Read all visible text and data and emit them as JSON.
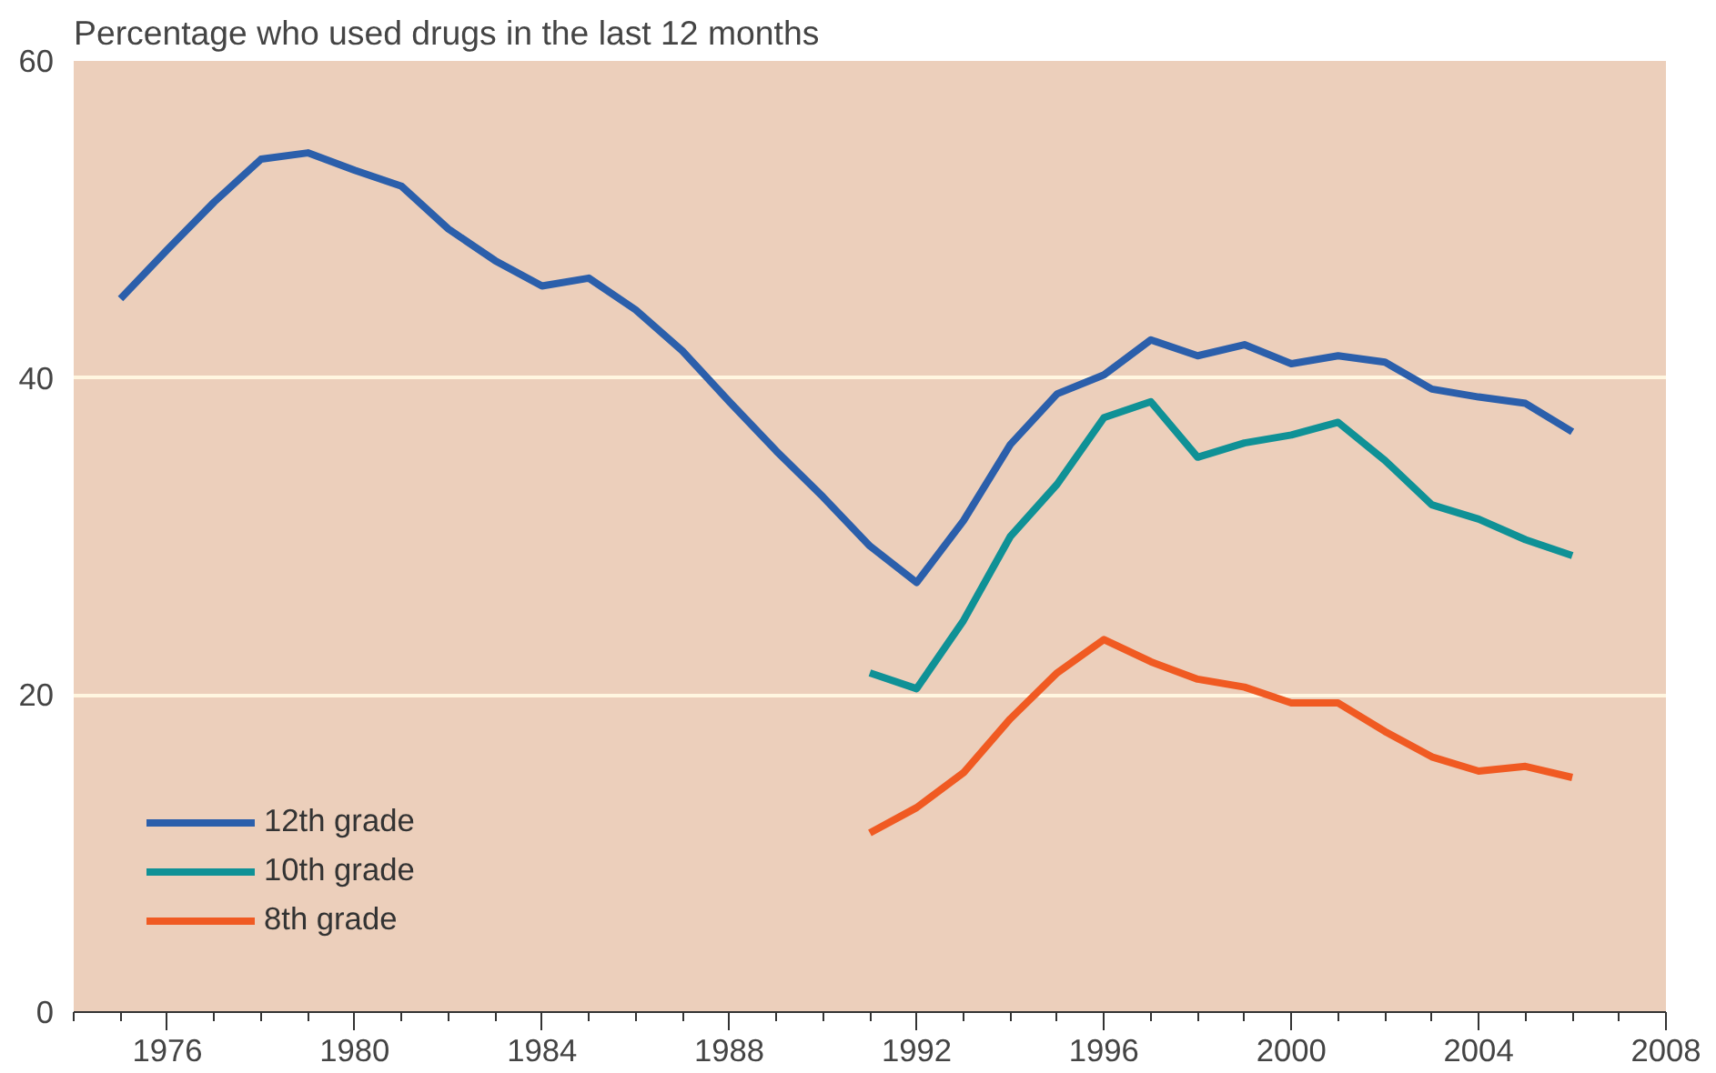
{
  "chart_data": {
    "type": "line",
    "title": "Percentage who used drugs in the last 12 months",
    "xlim": [
      1974,
      2008
    ],
    "xticks": [
      1976,
      1980,
      1984,
      1988,
      1992,
      1996,
      2000,
      2004,
      2008
    ],
    "ylim": [
      0,
      60
    ],
    "yticks": [
      0,
      20,
      40,
      60
    ],
    "grid": "y",
    "legend": "bottom left",
    "line_style": "solid",
    "series": [
      {
        "name": "12th grade",
        "color": "#2b5fab",
        "x": [
          1975,
          1976,
          1977,
          1978,
          1979,
          1980,
          1981,
          1982,
          1983,
          1984,
          1985,
          1986,
          1987,
          1988,
          1989,
          1990,
          1991,
          1992,
          1993,
          1994,
          1995,
          1996,
          1997,
          1998,
          1999,
          2000,
          2001,
          2002,
          2003,
          2004,
          2005,
          2006
        ],
        "values": [
          45.0,
          48.1,
          51.1,
          53.8,
          54.2,
          53.1,
          52.1,
          49.4,
          47.4,
          45.8,
          46.3,
          44.3,
          41.7,
          38.5,
          35.4,
          32.5,
          29.4,
          27.1,
          31.0,
          35.8,
          39.0,
          40.2,
          42.4,
          41.4,
          42.1,
          40.9,
          41.4,
          41.0,
          39.3,
          38.8,
          38.4,
          36.6
        ]
      },
      {
        "name": "10th grade",
        "color": "#0f9196",
        "x": [
          1991,
          1992,
          1993,
          1994,
          1995,
          1996,
          1997,
          1998,
          1999,
          2000,
          2001,
          2002,
          2003,
          2004,
          2005,
          2006
        ],
        "values": [
          21.4,
          20.4,
          24.7,
          30.0,
          33.3,
          37.5,
          38.5,
          35.0,
          35.9,
          36.4,
          37.2,
          34.8,
          32.0,
          31.1,
          29.8,
          28.8
        ]
      },
      {
        "name": "8th grade",
        "color": "#f05a22",
        "x": [
          1991,
          1992,
          1993,
          1994,
          1995,
          1996,
          1997,
          1998,
          1999,
          2000,
          2001,
          2002,
          2003,
          2004,
          2005,
          2006
        ],
        "values": [
          11.3,
          12.9,
          15.1,
          18.5,
          21.4,
          23.5,
          22.1,
          21.0,
          20.5,
          19.5,
          19.5,
          17.7,
          16.1,
          15.2,
          15.5,
          14.8
        ]
      }
    ]
  }
}
